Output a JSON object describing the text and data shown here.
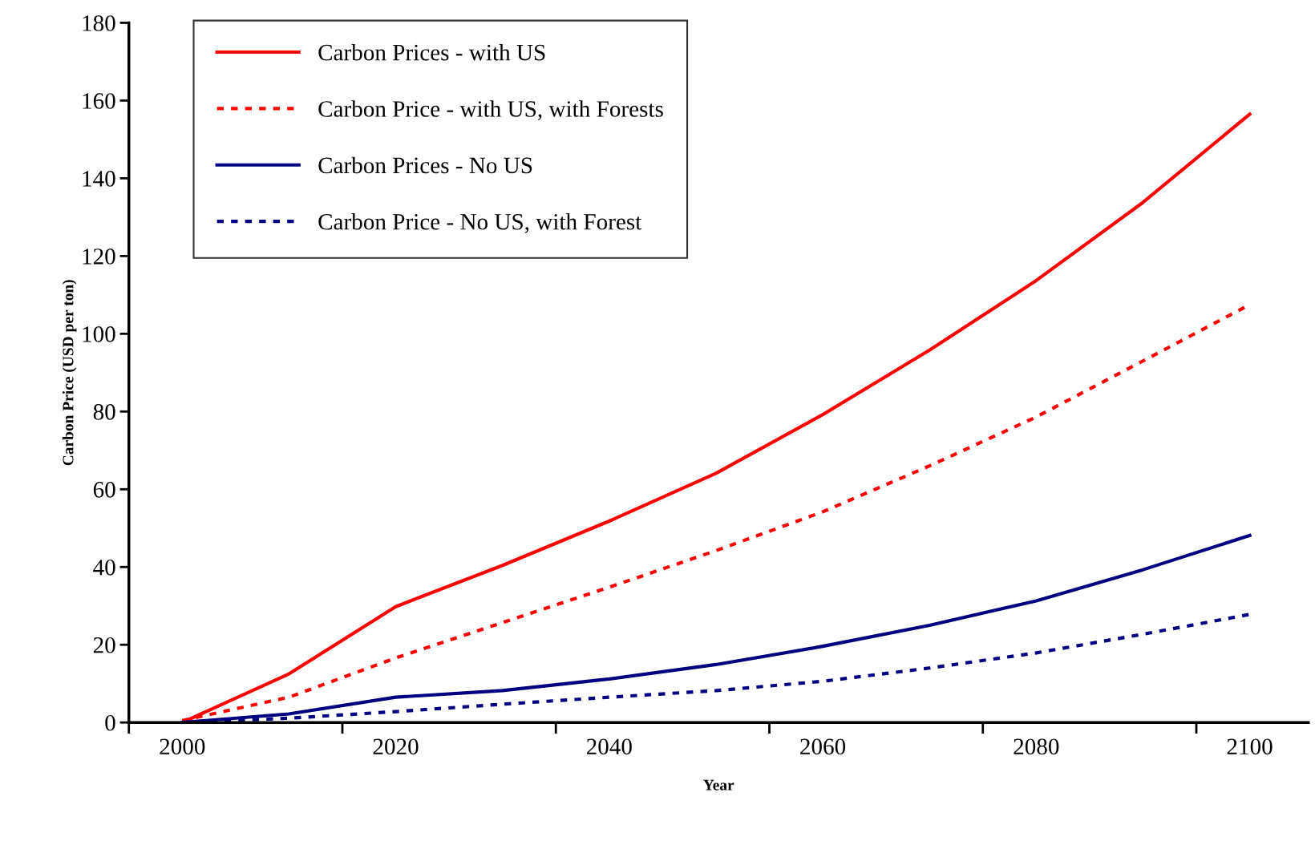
{
  "chart_data": {
    "type": "line",
    "xlabel": "Year",
    "ylabel": "Carbon Price (USD per ton)",
    "categories": [
      "2000",
      null,
      "2020",
      null,
      "2040",
      null,
      "2060",
      null,
      "2080",
      null,
      "2100"
    ],
    "ylim": [
      0,
      180
    ],
    "yticks": [
      0,
      20,
      40,
      60,
      80,
      100,
      120,
      140,
      160,
      180
    ],
    "grid": false,
    "legend": "top left",
    "marker": "none",
    "series": [
      {
        "name": "Carbon Prices - with US",
        "color": "#ff0000",
        "line_style": "solid",
        "values": [
          0,
          12.5,
          29.8,
          40.4,
          51.8,
          64.1,
          79.2,
          95.8,
          113.7,
          133.8,
          156.5
        ]
      },
      {
        "name": "Carbon Price - with US, with Forests",
        "color": "#ff0000",
        "line_style": "dashed",
        "values": [
          0.5,
          6.5,
          16.6,
          25.7,
          34.8,
          44.2,
          54.2,
          66,
          78.6,
          93,
          107.5
        ]
      },
      {
        "name": "Carbon Prices - No US",
        "color": "#000080",
        "line_style": "solid",
        "values": [
          0,
          2.2,
          6.5,
          8.2,
          11.2,
          14.9,
          19.6,
          25,
          31.3,
          39.3,
          48.1
        ]
      },
      {
        "name": "Carbon Price - No US, with Forest",
        "color": "#000080",
        "line_style": "dashed",
        "values": [
          0,
          1.1,
          2.8,
          4.7,
          6.5,
          8.2,
          10.6,
          14,
          17.9,
          22.7,
          27.8
        ]
      }
    ]
  }
}
